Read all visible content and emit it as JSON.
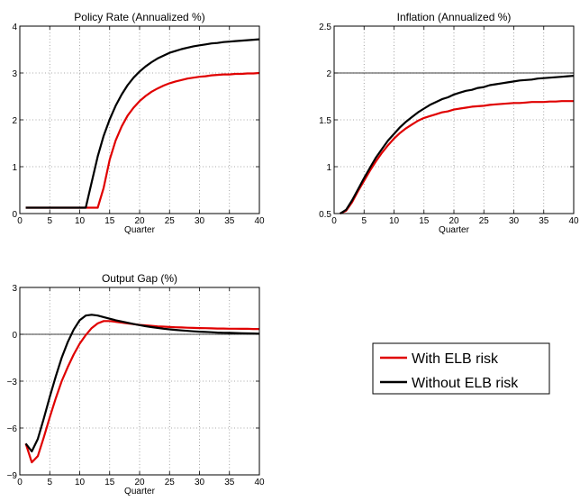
{
  "colors": {
    "with_elb": "#e00000",
    "without_elb": "#000000",
    "grid": "#8c8c8c",
    "reference": "#000000"
  },
  "legend": {
    "items": [
      {
        "label": "With ELB risk",
        "color": "#e00000"
      },
      {
        "label": "Without ELB risk",
        "color": "#000000"
      }
    ]
  },
  "chart_data": [
    {
      "type": "line",
      "title": "Policy Rate (Annualized %)",
      "xlabel": "Quarter",
      "ylabel": "",
      "xlim": [
        0,
        40
      ],
      "ylim": [
        0,
        4
      ],
      "xticks": [
        0,
        5,
        10,
        15,
        20,
        25,
        30,
        35,
        40
      ],
      "yticks": [
        0,
        1,
        2,
        3,
        4
      ],
      "ytick_labels": [
        "0",
        "1",
        "2",
        "3",
        "4"
      ],
      "grid": true,
      "series": [
        {
          "name": "With ELB risk",
          "color": "#e00000",
          "x": [
            1,
            2,
            3,
            4,
            5,
            6,
            7,
            8,
            9,
            10,
            11,
            12,
            13,
            14,
            15,
            16,
            17,
            18,
            19,
            20,
            21,
            22,
            23,
            24,
            25,
            26,
            27,
            28,
            29,
            30,
            31,
            32,
            33,
            34,
            35,
            36,
            37,
            38,
            39,
            40
          ],
          "y": [
            0.125,
            0.125,
            0.125,
            0.125,
            0.125,
            0.125,
            0.125,
            0.125,
            0.125,
            0.125,
            0.125,
            0.125,
            0.125,
            0.55,
            1.15,
            1.56,
            1.86,
            2.09,
            2.26,
            2.4,
            2.51,
            2.6,
            2.67,
            2.73,
            2.78,
            2.82,
            2.85,
            2.88,
            2.9,
            2.92,
            2.93,
            2.95,
            2.96,
            2.97,
            2.97,
            2.98,
            2.98,
            2.99,
            2.99,
            3.0
          ]
        },
        {
          "name": "Without ELB risk",
          "color": "#000000",
          "x": [
            1,
            2,
            3,
            4,
            5,
            6,
            7,
            8,
            9,
            10,
            11,
            12,
            13,
            14,
            15,
            16,
            17,
            18,
            19,
            20,
            21,
            22,
            23,
            24,
            25,
            26,
            27,
            28,
            29,
            30,
            31,
            32,
            33,
            34,
            35,
            36,
            37,
            38,
            39,
            40
          ],
          "y": [
            0.125,
            0.125,
            0.125,
            0.125,
            0.125,
            0.125,
            0.125,
            0.125,
            0.125,
            0.125,
            0.125,
            0.67,
            1.22,
            1.66,
            2.01,
            2.3,
            2.54,
            2.74,
            2.9,
            3.03,
            3.14,
            3.23,
            3.31,
            3.37,
            3.43,
            3.47,
            3.51,
            3.54,
            3.57,
            3.59,
            3.61,
            3.63,
            3.64,
            3.66,
            3.67,
            3.68,
            3.69,
            3.7,
            3.71,
            3.72
          ]
        }
      ]
    },
    {
      "type": "line",
      "title": "Inflation (Annualized %)",
      "xlabel": "Quarter",
      "ylabel": "",
      "xlim": [
        0,
        40
      ],
      "ylim": [
        0.5,
        2.5
      ],
      "xticks": [
        0,
        5,
        10,
        15,
        20,
        25,
        30,
        35,
        40
      ],
      "yticks": [
        0.5,
        1,
        1.5,
        2,
        2.5
      ],
      "ytick_labels": [
        "0.5",
        "1",
        "1.5",
        "2",
        "2.5"
      ],
      "grid": true,
      "hline": 2,
      "series": [
        {
          "name": "With ELB risk",
          "color": "#e00000",
          "x": [
            1,
            2,
            3,
            4,
            5,
            6,
            7,
            8,
            9,
            10,
            11,
            12,
            13,
            14,
            15,
            16,
            17,
            18,
            19,
            20,
            21,
            22,
            23,
            24,
            25,
            26,
            27,
            28,
            29,
            30,
            31,
            32,
            33,
            34,
            35,
            36,
            37,
            38,
            39,
            40
          ],
          "y": [
            0.5,
            0.53,
            0.62,
            0.74,
            0.85,
            0.96,
            1.06,
            1.15,
            1.23,
            1.3,
            1.36,
            1.41,
            1.45,
            1.49,
            1.52,
            1.54,
            1.56,
            1.58,
            1.59,
            1.61,
            1.62,
            1.63,
            1.64,
            1.645,
            1.65,
            1.66,
            1.665,
            1.67,
            1.675,
            1.68,
            1.68,
            1.685,
            1.69,
            1.69,
            1.69,
            1.695,
            1.695,
            1.7,
            1.7,
            1.7
          ]
        },
        {
          "name": "Without ELB risk",
          "color": "#000000",
          "x": [
            1,
            2,
            3,
            4,
            5,
            6,
            7,
            8,
            9,
            10,
            11,
            12,
            13,
            14,
            15,
            16,
            17,
            18,
            19,
            20,
            21,
            22,
            23,
            24,
            25,
            26,
            27,
            28,
            29,
            30,
            31,
            32,
            33,
            34,
            35,
            36,
            37,
            38,
            39,
            40
          ],
          "y": [
            0.5,
            0.54,
            0.64,
            0.76,
            0.88,
            0.99,
            1.1,
            1.19,
            1.28,
            1.35,
            1.42,
            1.48,
            1.53,
            1.58,
            1.62,
            1.66,
            1.69,
            1.72,
            1.74,
            1.77,
            1.79,
            1.81,
            1.82,
            1.84,
            1.85,
            1.87,
            1.88,
            1.89,
            1.9,
            1.91,
            1.92,
            1.925,
            1.93,
            1.94,
            1.945,
            1.95,
            1.955,
            1.96,
            1.965,
            1.97
          ]
        }
      ]
    },
    {
      "type": "line",
      "title": "Output Gap (%)",
      "xlabel": "Quarter",
      "ylabel": "",
      "xlim": [
        0,
        40
      ],
      "ylim": [
        -9,
        3
      ],
      "xticks": [
        0,
        5,
        10,
        15,
        20,
        25,
        30,
        35,
        40
      ],
      "yticks": [
        -9,
        -6,
        -3,
        0,
        3
      ],
      "ytick_labels": [
        "−9",
        "−6",
        "−3",
        "0",
        "3"
      ],
      "grid": true,
      "hline": 0,
      "series": [
        {
          "name": "With ELB risk",
          "color": "#e00000",
          "x": [
            1,
            2,
            3,
            4,
            5,
            6,
            7,
            8,
            9,
            10,
            11,
            12,
            13,
            14,
            15,
            16,
            17,
            18,
            19,
            20,
            21,
            22,
            23,
            24,
            25,
            26,
            27,
            28,
            29,
            30,
            31,
            32,
            33,
            34,
            35,
            36,
            37,
            38,
            39,
            40
          ],
          "y": [
            -7.0,
            -8.2,
            -7.8,
            -6.6,
            -5.3,
            -4.1,
            -3.0,
            -2.1,
            -1.3,
            -0.6,
            -0.05,
            0.4,
            0.7,
            0.85,
            0.85,
            0.8,
            0.75,
            0.7,
            0.65,
            0.6,
            0.57,
            0.54,
            0.51,
            0.49,
            0.47,
            0.45,
            0.44,
            0.42,
            0.41,
            0.4,
            0.39,
            0.38,
            0.37,
            0.37,
            0.36,
            0.36,
            0.35,
            0.35,
            0.34,
            0.34
          ]
        },
        {
          "name": "Without ELB risk",
          "color": "#000000",
          "x": [
            1,
            2,
            3,
            4,
            5,
            6,
            7,
            8,
            9,
            10,
            11,
            12,
            13,
            14,
            15,
            16,
            17,
            18,
            19,
            20,
            21,
            22,
            23,
            24,
            25,
            26,
            27,
            28,
            29,
            30,
            31,
            32,
            33,
            34,
            35,
            36,
            37,
            38,
            39,
            40
          ],
          "y": [
            -7.0,
            -7.5,
            -6.7,
            -5.4,
            -4.0,
            -2.7,
            -1.5,
            -0.5,
            0.3,
            0.9,
            1.2,
            1.25,
            1.2,
            1.1,
            1.0,
            0.9,
            0.82,
            0.74,
            0.66,
            0.59,
            0.52,
            0.46,
            0.41,
            0.36,
            0.32,
            0.28,
            0.25,
            0.22,
            0.19,
            0.17,
            0.15,
            0.13,
            0.11,
            0.1,
            0.09,
            0.08,
            0.07,
            0.06,
            0.05,
            0.04
          ]
        }
      ]
    }
  ]
}
